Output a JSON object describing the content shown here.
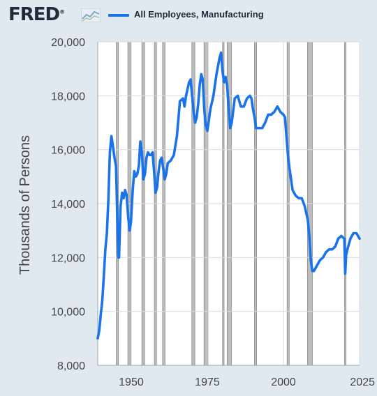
{
  "header": {
    "logo_text": "FRED",
    "logo_reg": "®",
    "logo_icon": "trend-chart-icon",
    "legend_label": "All Employees, Manufacturing"
  },
  "colors": {
    "background": "#e1e9f0",
    "plot_background": "#ffffff",
    "series": "#1a73e8",
    "recession": "#bdbdbd",
    "text": "#1f2b39"
  },
  "chart_data": {
    "type": "line",
    "title": "",
    "xlabel": "",
    "ylabel": "Thousands of Persons",
    "xlim": [
      1939,
      2025
    ],
    "ylim": [
      8000,
      20000
    ],
    "x_ticks": [
      "1950",
      "1975",
      "2000",
      "2025"
    ],
    "y_ticks": [
      "8,000",
      "10,000",
      "12,000",
      "14,000",
      "16,000",
      "18,000",
      "20,000"
    ],
    "grid": true,
    "legend": "top-left",
    "recessions": [
      [
        1945.1,
        1945.8
      ],
      [
        1948.9,
        1949.8
      ],
      [
        1953.5,
        1954.4
      ],
      [
        1957.6,
        1958.3
      ],
      [
        1960.3,
        1961.1
      ],
      [
        1969.9,
        1970.9
      ],
      [
        1973.9,
        1975.2
      ],
      [
        1980.0,
        1980.5
      ],
      [
        1981.5,
        1982.9
      ],
      [
        1990.5,
        1991.2
      ],
      [
        2001.2,
        2001.9
      ],
      [
        2007.9,
        2009.5
      ],
      [
        2020.1,
        2020.3
      ]
    ],
    "series": [
      {
        "name": "All Employees, Manufacturing",
        "x": [
          1939.0,
          1939.5,
          1940.0,
          1940.5,
          1941.0,
          1941.5,
          1942.0,
          1942.5,
          1943.0,
          1943.5,
          1943.9,
          1944.5,
          1945.0,
          1945.5,
          1945.8,
          1946.0,
          1946.5,
          1947.0,
          1947.5,
          1948.0,
          1948.5,
          1949.0,
          1949.5,
          1949.9,
          1950.5,
          1951.0,
          1951.5,
          1952.0,
          1952.5,
          1953.0,
          1953.5,
          1954.0,
          1954.5,
          1955.0,
          1955.5,
          1956.0,
          1956.5,
          1957.0,
          1957.5,
          1958.0,
          1958.5,
          1959.0,
          1959.5,
          1960.0,
          1960.5,
          1961.0,
          1961.5,
          1962.0,
          1963.0,
          1964.0,
          1965.0,
          1966.0,
          1967.0,
          1967.5,
          1968.0,
          1969.0,
          1969.5,
          1970.0,
          1970.5,
          1971.0,
          1971.5,
          1972.0,
          1972.5,
          1973.0,
          1973.5,
          1974.0,
          1974.5,
          1975.0,
          1975.5,
          1976.0,
          1977.0,
          1978.0,
          1979.0,
          1979.5,
          1980.0,
          1980.5,
          1981.0,
          1981.5,
          1982.0,
          1982.5,
          1983.0,
          1984.0,
          1985.0,
          1986.0,
          1987.0,
          1988.0,
          1989.0,
          1989.5,
          1990.0,
          1990.5,
          1991.0,
          1992.0,
          1993.0,
          1994.0,
          1995.0,
          1996.0,
          1997.0,
          1998.0,
          1999.0,
          2000.0,
          2000.5,
          2001.0,
          2001.5,
          2002.0,
          2003.0,
          2004.0,
          2005.0,
          2006.0,
          2007.0,
          2008.0,
          2008.5,
          2009.0,
          2009.5,
          2010.0,
          2011.0,
          2012.0,
          2013.0,
          2014.0,
          2015.0,
          2016.0,
          2017.0,
          2018.0,
          2019.0,
          2020.0,
          2020.3,
          2020.6,
          2021.0,
          2022.0,
          2023.0,
          2024.0,
          2024.5,
          2025.0
        ],
        "values": [
          9000,
          9300,
          9900,
          10400,
          11300,
          12300,
          12900,
          14200,
          15900,
          16500,
          16200,
          15700,
          15400,
          13200,
          12000,
          12000,
          13900,
          14400,
          14200,
          14500,
          14300,
          13500,
          13000,
          13300,
          14500,
          15200,
          15000,
          15100,
          15400,
          16300,
          15900,
          14900,
          15100,
          15700,
          15900,
          15800,
          15800,
          15900,
          15200,
          14400,
          14600,
          15200,
          15600,
          15700,
          15300,
          14900,
          15100,
          15500,
          15600,
          15800,
          16500,
          17800,
          17900,
          17600,
          18000,
          18500,
          18600,
          18000,
          17400,
          17000,
          17200,
          17700,
          18400,
          18800,
          18600,
          17500,
          16900,
          16700,
          17100,
          17500,
          18000,
          18800,
          19400,
          19600,
          18900,
          18500,
          18700,
          18400,
          17600,
          16800,
          17000,
          17900,
          18000,
          17600,
          17600,
          17900,
          18000,
          17900,
          17500,
          17200,
          16800,
          16800,
          16800,
          17000,
          17300,
          17300,
          17400,
          17600,
          17400,
          17300,
          17200,
          16500,
          15800,
          15300,
          14500,
          14300,
          14200,
          14200,
          13900,
          13400,
          12800,
          11900,
          11500,
          11500,
          11700,
          11900,
          12000,
          12200,
          12300,
          12300,
          12400,
          12700,
          12800,
          12700,
          11400,
          12100,
          12300,
          12700,
          12900,
          12900,
          12800,
          12700
        ]
      }
    ]
  }
}
